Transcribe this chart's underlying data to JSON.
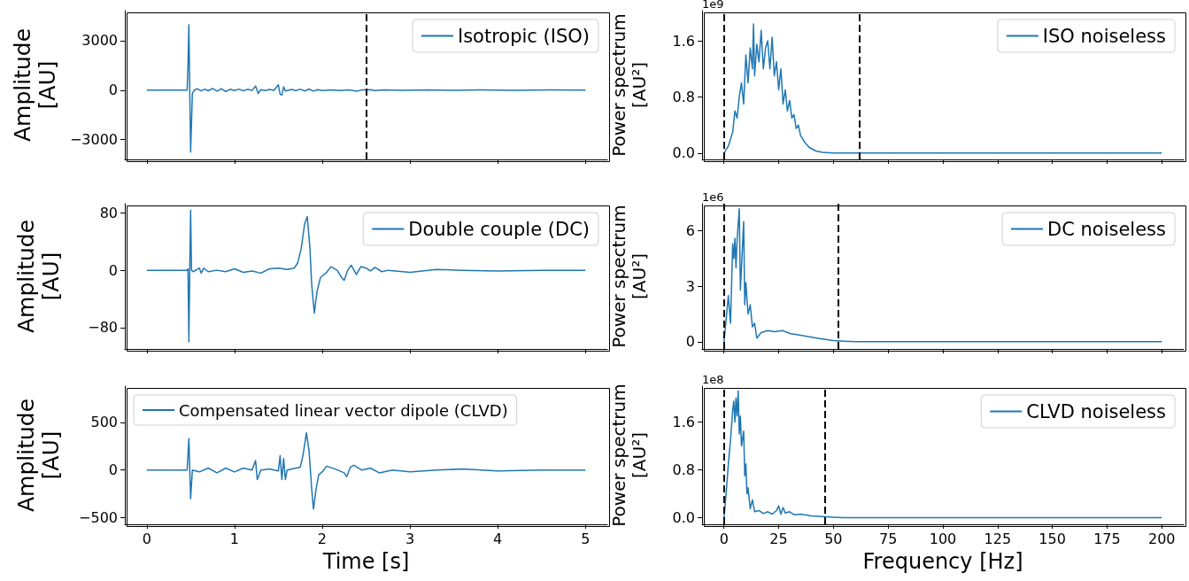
{
  "chart_data": [
    {
      "type": "line",
      "ylabel": "Amplitude\n[AU]",
      "xlim": [
        -0.25,
        5.25
      ],
      "xticks": [
        0,
        1,
        2,
        3,
        4,
        5
      ],
      "ylim": [
        -4200,
        4820
      ],
      "yticks": [
        {
          "value": -3000,
          "label": "−3000"
        },
        0,
        3000
      ],
      "tick_labels": "y",
      "grid": false,
      "legend": "top right",
      "ref_lines": [
        {
          "axis": "x",
          "value": 2.5,
          "color": "#000000",
          "line_style": "dashed"
        }
      ],
      "series": [
        {
          "name": "Isotropic (ISO)",
          "color": "#1f77b4",
          "x": [
            0,
            0.46,
            0.47,
            0.48,
            0.49,
            0.5,
            0.52,
            0.54,
            0.58,
            0.62,
            0.66,
            0.7,
            0.75,
            0.8,
            0.85,
            0.9,
            0.95,
            1.0,
            1.05,
            1.1,
            1.15,
            1.2,
            1.24,
            1.27,
            1.3,
            1.35,
            1.4,
            1.45,
            1.5,
            1.52,
            1.54,
            1.56,
            1.58,
            1.65,
            1.7,
            1.75,
            1.8,
            1.85,
            1.9,
            1.95,
            2.0,
            2.1,
            2.2,
            2.3,
            2.4,
            2.45,
            2.55,
            2.6,
            2.7,
            2.9,
            3.2,
            3.5,
            3.8,
            4.2,
            4.6,
            5.0
          ],
          "values": [
            0,
            0,
            1500,
            3960,
            0,
            -3750,
            -200,
            0,
            80,
            -50,
            60,
            -40,
            100,
            -60,
            90,
            -80,
            50,
            -30,
            60,
            -40,
            50,
            -20,
            250,
            -200,
            30,
            -20,
            40,
            -10,
            320,
            -250,
            -300,
            200,
            -50,
            40,
            -30,
            60,
            -50,
            70,
            -60,
            30,
            -20,
            10,
            -30,
            20,
            -60,
            10,
            30,
            -20,
            10,
            -10,
            10,
            -10,
            10,
            -10,
            10,
            0
          ]
        }
      ]
    },
    {
      "type": "line",
      "ylabel": "Power spectrum\n[AU²]",
      "annotations": [
        "1e9"
      ],
      "xlim": [
        -10,
        210
      ],
      "xticks": [
        0,
        25,
        50,
        75,
        100,
        125,
        150,
        175,
        200
      ],
      "ylim": [
        -0.09,
        2.03
      ],
      "yticks": [
        {
          "value": 0,
          "label": "0.0"
        },
        0.8,
        1.6
      ],
      "tick_labels": "y",
      "grid": false,
      "legend": "top right",
      "ref_lines": [
        {
          "axis": "x",
          "value": 0,
          "color": "#000000",
          "line_style": "dashed"
        },
        {
          "axis": "x",
          "value": 62,
          "color": "#000000",
          "line_style": "dashed"
        }
      ],
      "series": [
        {
          "name": "ISO noiseless",
          "color": "#1f77b4",
          "x": [
            0,
            2,
            4,
            5,
            6,
            7,
            8,
            9,
            10,
            11,
            12,
            13,
            13.5,
            14,
            15,
            16,
            17,
            18,
            19,
            20,
            21,
            22,
            23,
            24,
            25,
            26,
            27,
            28,
            29,
            30,
            31,
            32,
            33,
            34,
            35,
            37,
            39,
            42,
            45,
            50,
            200
          ],
          "values": [
            0,
            0.1,
            0.3,
            0.6,
            0.5,
            0.8,
            1.0,
            0.7,
            1.4,
            1.0,
            1.5,
            1.2,
            1.84,
            1.1,
            1.55,
            1.3,
            1.75,
            1.2,
            1.5,
            1.6,
            1.2,
            1.65,
            1.1,
            1.3,
            0.9,
            1.2,
            0.7,
            0.9,
            0.6,
            0.75,
            0.5,
            0.55,
            0.35,
            0.4,
            0.25,
            0.15,
            0.08,
            0.03,
            0.01,
            0,
            0
          ]
        }
      ]
    },
    {
      "type": "line",
      "ylabel": "Amplitude\n[AU]",
      "xlim": [
        -0.25,
        5.25
      ],
      "xticks": [
        0,
        1,
        2,
        3,
        4,
        5
      ],
      "ylim": [
        -110,
        93
      ],
      "yticks": [
        {
          "value": -80,
          "label": "−80"
        },
        0,
        80
      ],
      "tick_labels": "y",
      "grid": false,
      "legend": "top right",
      "series": [
        {
          "name": "Double couple (DC)",
          "color": "#1f77b4",
          "x": [
            0,
            0.46,
            0.47,
            0.48,
            0.49,
            0.5,
            0.51,
            0.53,
            0.6,
            0.62,
            0.65,
            0.7,
            0.8,
            0.9,
            1.0,
            1.1,
            1.2,
            1.3,
            1.4,
            1.5,
            1.6,
            1.68,
            1.72,
            1.76,
            1.8,
            1.83,
            1.86,
            1.88,
            1.91,
            1.94,
            1.98,
            2.05,
            2.1,
            2.17,
            2.22,
            2.25,
            2.29,
            2.33,
            2.39,
            2.44,
            2.5,
            2.55,
            2.6,
            2.68,
            2.75,
            3.0,
            3.3,
            3.6,
            4.0,
            4.5,
            5.0
          ],
          "values": [
            0,
            0,
            2,
            -100,
            0,
            84,
            0,
            -2,
            3,
            -4,
            3,
            -2,
            0,
            -2,
            2,
            -3,
            -1,
            -4,
            2,
            3,
            1,
            3,
            10,
            30,
            65,
            75,
            30,
            -20,
            -60,
            -30,
            -10,
            -3,
            5,
            0,
            -10,
            -14,
            0,
            7,
            -6,
            5,
            3,
            -1,
            4,
            -2,
            0,
            -3,
            1,
            0,
            -1,
            0,
            0
          ]
        }
      ]
    },
    {
      "type": "line",
      "ylabel": "Power spectrum\n[AU²]",
      "annotations": [
        "1e6"
      ],
      "xlim": [
        -10,
        210
      ],
      "xticks": [
        0,
        25,
        50,
        75,
        100,
        125,
        150,
        175,
        200
      ],
      "ylim": [
        -0.39,
        7.47
      ],
      "yticks": [
        0,
        3,
        6
      ],
      "tick_labels": "y",
      "grid": false,
      "legend": "top right",
      "ref_lines": [
        {
          "axis": "x",
          "value": 0,
          "color": "#000000",
          "line_style": "dashed"
        },
        {
          "axis": "x",
          "value": 52,
          "color": "#000000",
          "line_style": "dashed"
        }
      ],
      "series": [
        {
          "name": "DC noiseless",
          "color": "#1f77b4",
          "x": [
            0,
            1,
            2,
            3,
            4,
            4.5,
            5,
            5.5,
            6,
            7,
            7.5,
            8,
            9,
            9.5,
            10,
            11,
            12,
            13,
            14,
            15,
            17,
            20,
            23,
            27,
            30,
            35,
            40,
            45,
            50,
            55,
            60,
            200
          ],
          "values": [
            0,
            1.2,
            2.5,
            1.0,
            5.3,
            4.5,
            5.6,
            4.0,
            5.5,
            7.2,
            2.8,
            4.0,
            6.5,
            2.0,
            3.2,
            1.5,
            2.0,
            0.8,
            1.0,
            0.2,
            0.5,
            0.6,
            0.55,
            0.6,
            0.45,
            0.35,
            0.25,
            0.15,
            0.06,
            0.03,
            0.01,
            0
          ]
        }
      ]
    },
    {
      "type": "line",
      "ylabel": "Amplitude\n[AU]",
      "xlabel": "Time [s]",
      "xlim": [
        -0.25,
        5.25
      ],
      "xticks": [
        0,
        1,
        2,
        3,
        4,
        5
      ],
      "ylim": [
        -570,
        880
      ],
      "yticks": [
        {
          "value": -500,
          "label": "−500"
        },
        0,
        500
      ],
      "grid": false,
      "legend": "top left",
      "series": [
        {
          "name": "Compensated linear vector dipole (CLVD)",
          "color": "#1f77b4",
          "x": [
            0,
            0.46,
            0.48,
            0.5,
            0.52,
            0.6,
            0.7,
            0.8,
            0.9,
            1.0,
            1.1,
            1.2,
            1.24,
            1.26,
            1.3,
            1.4,
            1.5,
            1.52,
            1.54,
            1.56,
            1.58,
            1.6,
            1.7,
            1.75,
            1.78,
            1.82,
            1.85,
            1.88,
            1.9,
            1.93,
            1.96,
            2.0,
            2.05,
            2.15,
            2.25,
            2.28,
            2.32,
            2.36,
            2.45,
            2.55,
            2.65,
            2.8,
            3.0,
            3.3,
            3.6,
            4.0,
            4.5,
            5.0
          ],
          "values": [
            0,
            0,
            330,
            -300,
            0,
            -20,
            20,
            -30,
            20,
            -20,
            20,
            0,
            100,
            -100,
            0,
            10,
            -10,
            150,
            -100,
            120,
            -100,
            0,
            20,
            30,
            150,
            390,
            200,
            -200,
            -410,
            -200,
            -50,
            -20,
            40,
            10,
            -30,
            -70,
            30,
            50,
            0,
            20,
            -30,
            0,
            -20,
            0,
            10,
            -10,
            0,
            0
          ]
        }
      ]
    },
    {
      "type": "line",
      "ylabel": "Power spectrum\n[AU²]",
      "xlabel": "Frequency [Hz]",
      "annotations": [
        "1e8"
      ],
      "xlim": [
        -10,
        210
      ],
      "xticks": [
        0,
        25,
        50,
        75,
        100,
        125,
        150,
        175,
        200
      ],
      "ylim": [
        -0.11,
        2.2
      ],
      "yticks": [
        {
          "value": 0,
          "label": "0.0"
        },
        0.8,
        1.6
      ],
      "grid": false,
      "legend": "top right",
      "ref_lines": [
        {
          "axis": "x",
          "value": 0,
          "color": "#000000",
          "line_style": "dashed"
        },
        {
          "axis": "x",
          "value": 46,
          "color": "#000000",
          "line_style": "dashed"
        }
      ],
      "series": [
        {
          "name": "CLVD noiseless",
          "color": "#1f77b4",
          "x": [
            0,
            1,
            2,
            3,
            4,
            4.5,
            5,
            5.5,
            6,
            6.5,
            7,
            7.5,
            8,
            9,
            9.5,
            10,
            10.5,
            11,
            12,
            13,
            14,
            16,
            18,
            20,
            22,
            24,
            25,
            26,
            27,
            28,
            30,
            32,
            35,
            40,
            45,
            50,
            55,
            200
          ],
          "values": [
            0,
            0.4,
            0.9,
            1.3,
            1.8,
            1.95,
            1.6,
            2.0,
            1.7,
            2.12,
            1.4,
            1.7,
            1.2,
            1.45,
            0.7,
            0.9,
            0.4,
            0.5,
            0.15,
            0.3,
            0.1,
            0.12,
            0.07,
            0.1,
            0.06,
            0.12,
            0.2,
            0.06,
            0.17,
            0.08,
            0.1,
            0.05,
            0.06,
            0.03,
            0.02,
            0.01,
            0,
            0
          ]
        }
      ]
    }
  ]
}
